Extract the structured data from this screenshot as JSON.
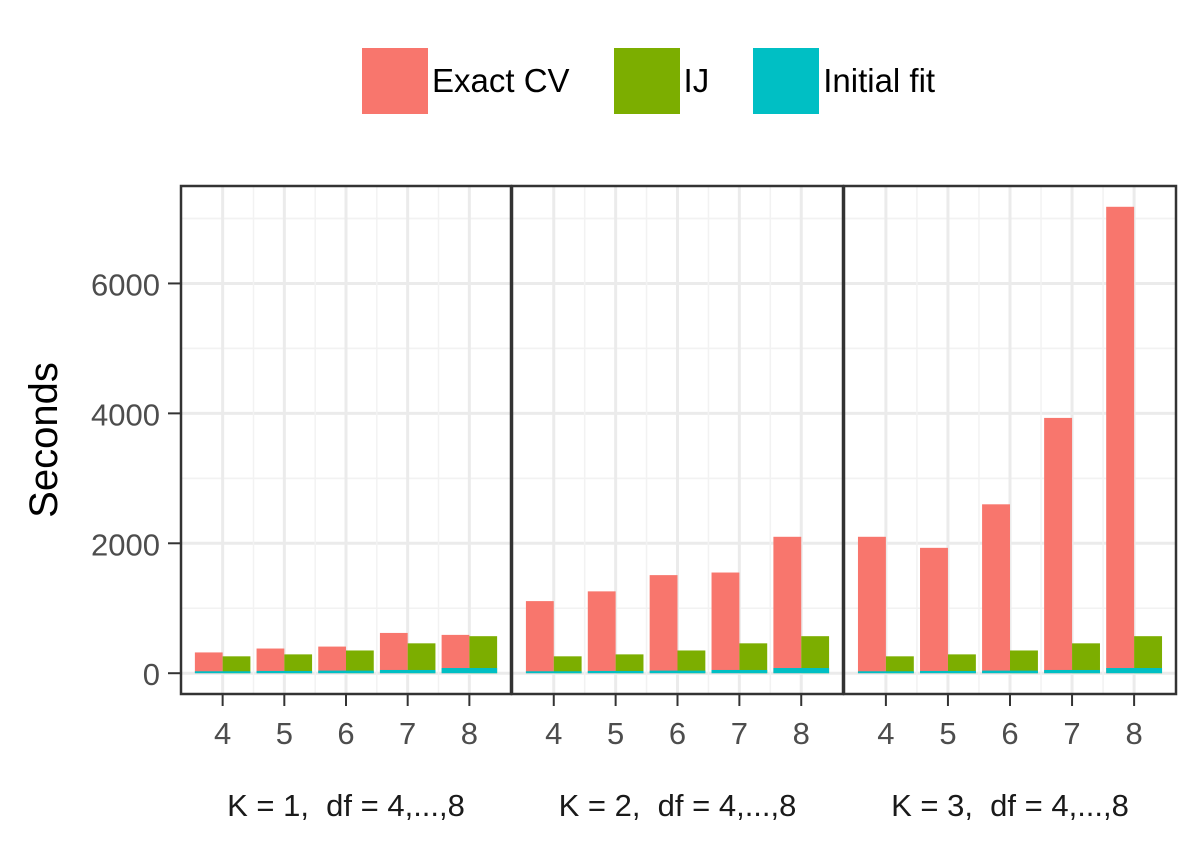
{
  "chart_data": {
    "type": "bar",
    "layout": "facets",
    "ylabel": "Seconds",
    "yticks": [
      0,
      2000,
      4000,
      6000
    ],
    "ylim": [
      -320,
      7500
    ],
    "bar_stacking": "Initial fit stacked under Exact CV and IJ bars",
    "categories": [
      "4",
      "5",
      "6",
      "7",
      "8"
    ],
    "series": [
      {
        "name": "Exact CV",
        "color": "#F8766D"
      },
      {
        "name": "IJ",
        "color": "#7CAE00"
      },
      {
        "name": "Initial fit",
        "color": "#00BFC4"
      }
    ],
    "legend_position": "top",
    "grid": true,
    "panels": [
      {
        "label": "K = 1,  df = 4,...,8",
        "exact_cv": [
          320,
          380,
          410,
          620,
          590
        ],
        "ij": [
          260,
          290,
          350,
          460,
          570
        ],
        "initial_fit": [
          30,
          35,
          40,
          50,
          80
        ]
      },
      {
        "label": "K = 2,  df = 4,...,8",
        "exact_cv": [
          1110,
          1260,
          1510,
          1550,
          2100
        ],
        "ij": [
          260,
          290,
          350,
          460,
          570
        ],
        "initial_fit": [
          30,
          35,
          40,
          50,
          80
        ]
      },
      {
        "label": "K = 3,  df = 4,...,8",
        "exact_cv": [
          2100,
          1930,
          2600,
          3930,
          7180
        ],
        "ij": [
          260,
          290,
          350,
          460,
          570
        ],
        "initial_fit": [
          30,
          35,
          40,
          50,
          80
        ]
      }
    ]
  }
}
